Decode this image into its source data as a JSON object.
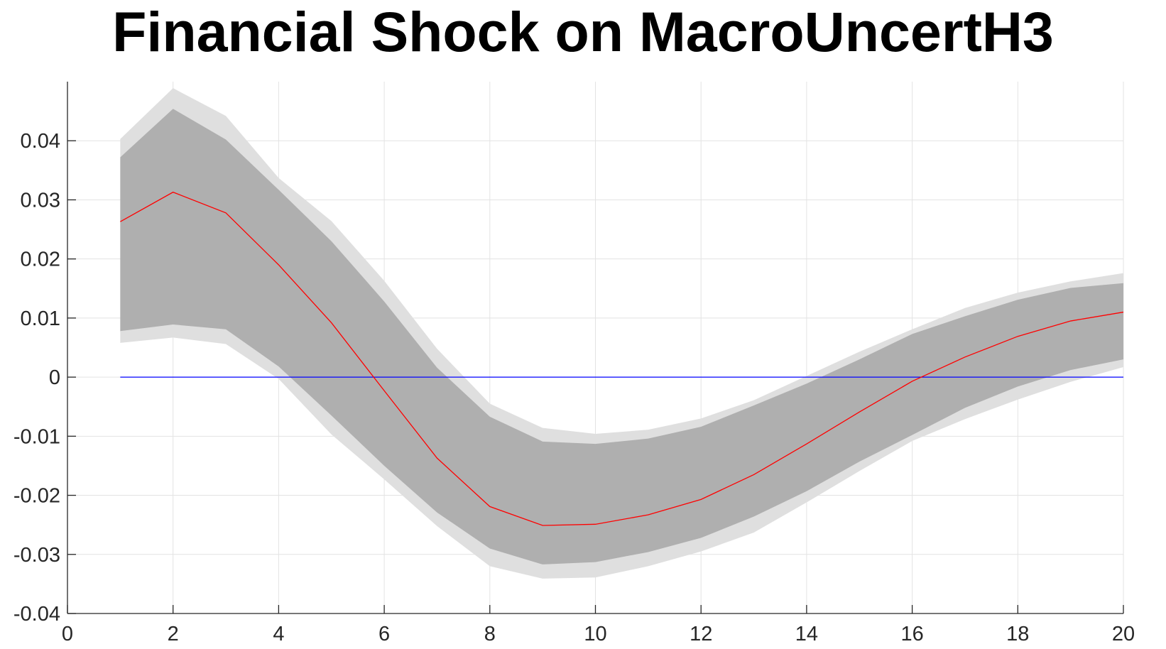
{
  "chart_data": {
    "type": "line",
    "title": "Financial Shock on MacroUncertH3",
    "xlabel": "",
    "ylabel": "",
    "xlim": [
      0,
      20
    ],
    "ylim": [
      -0.04,
      0.05
    ],
    "grid": true,
    "x_ticks": [
      0,
      2,
      4,
      6,
      8,
      10,
      12,
      14,
      16,
      18,
      20
    ],
    "x_tick_labels": [
      "0",
      "2",
      "4",
      "6",
      "8",
      "10",
      "12",
      "14",
      "16",
      "18",
      "20"
    ],
    "y_ticks": [
      -0.04,
      -0.03,
      -0.02,
      -0.01,
      0,
      0.01,
      0.02,
      0.03,
      0.04
    ],
    "y_tick_labels": [
      "-0.04",
      "-0.03",
      "-0.02",
      "-0.01",
      "0",
      "0.01",
      "0.02",
      "0.03",
      "0.04"
    ],
    "x": [
      1,
      2,
      3,
      4,
      5,
      6,
      7,
      8,
      9,
      10,
      11,
      12,
      13,
      14,
      15,
      16,
      17,
      18,
      19,
      20
    ],
    "series": [
      {
        "values": [
          0.0263,
          0.0313,
          0.0278,
          0.019,
          0.0092,
          -0.0023,
          -0.0137,
          -0.0219,
          -0.0251,
          -0.0249,
          -0.0233,
          -0.0207,
          -0.0165,
          -0.0113,
          -0.0059,
          -0.0007,
          0.0034,
          0.0069,
          0.0095,
          0.011
        ],
        "color": "#ff0000"
      },
      {
        "values": [
          0,
          0,
          0,
          0,
          0,
          0,
          0,
          0,
          0,
          0,
          0,
          0,
          0,
          0,
          0,
          0,
          0,
          0,
          0,
          0
        ],
        "color": "#0000ff"
      }
    ],
    "bands": [
      {
        "lower": [
          0.0078,
          0.0089,
          0.0081,
          0.0018,
          -0.0065,
          -0.015,
          -0.0229,
          -0.029,
          -0.0317,
          -0.0313,
          -0.0296,
          -0.0272,
          -0.0236,
          -0.0193,
          -0.0143,
          -0.0098,
          -0.0052,
          -0.0016,
          0.0012,
          0.003
        ],
        "upper": [
          0.0372,
          0.0454,
          0.0402,
          0.0317,
          0.023,
          0.0128,
          0.0016,
          -0.0067,
          -0.0109,
          -0.0113,
          -0.0104,
          -0.0084,
          -0.0048,
          -0.0011,
          0.003,
          0.0073,
          0.0103,
          0.0131,
          0.0151,
          0.0159
        ],
        "color": "#afafaf"
      },
      {
        "lower": [
          0.0058,
          0.0067,
          0.0056,
          -0.0003,
          -0.0097,
          -0.0173,
          -0.0252,
          -0.032,
          -0.0341,
          -0.0339,
          -0.032,
          -0.0295,
          -0.0263,
          -0.0212,
          -0.0159,
          -0.0108,
          -0.0071,
          -0.0038,
          -0.0008,
          0.0017
        ],
        "upper": [
          0.0403,
          0.0489,
          0.0442,
          0.0337,
          0.0264,
          0.0163,
          0.0048,
          -0.0045,
          -0.0086,
          -0.0096,
          -0.0089,
          -0.007,
          -0.0039,
          0.0002,
          0.0043,
          0.0081,
          0.0117,
          0.0143,
          0.0162,
          0.0176
        ],
        "color": "#dfdfdf"
      }
    ]
  }
}
